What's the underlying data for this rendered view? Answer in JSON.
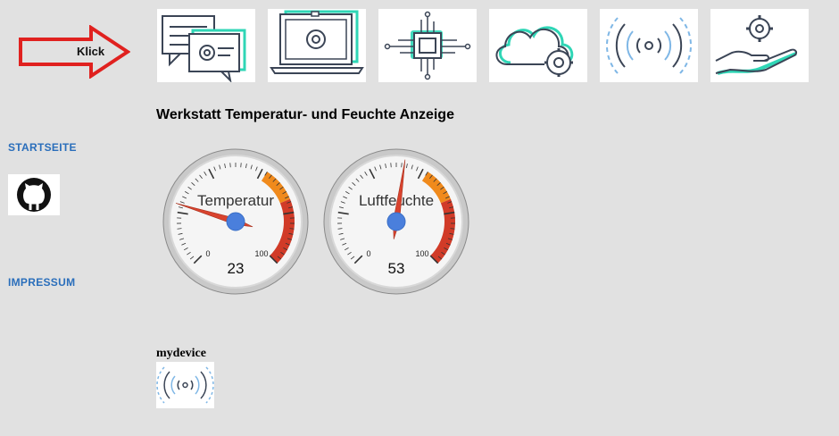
{
  "arrow": {
    "label": "Klick"
  },
  "nav": {
    "home": "STARTSEITE",
    "imprint": "IMPRESSUM"
  },
  "heading": "Werkstatt Temperatur- und Feuchte Anzeige",
  "gauges": [
    {
      "label": "Temperatur",
      "value": "23",
      "min": "0",
      "max": "100"
    },
    {
      "label": "Luftfeuchte",
      "value": "53",
      "min": "0",
      "max": "100"
    }
  ],
  "device": {
    "label": "mydevice"
  },
  "colors": {
    "accent": "#2fd6b6",
    "link": "#2a6ebb",
    "gaugeRed": "#d13b28",
    "gaugeOrange": "#f08a1c",
    "needle": "#d9432e",
    "hub": "#4a7fdc"
  }
}
